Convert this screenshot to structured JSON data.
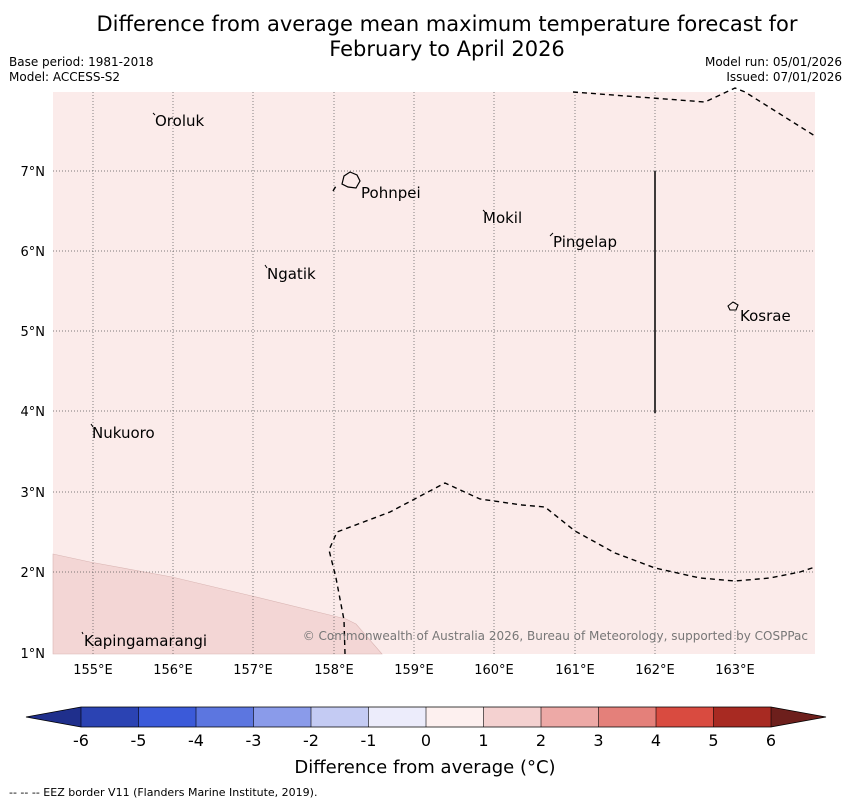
{
  "title": {
    "line1": "Difference from average mean maximum temperature forecast for",
    "line2": "February to April 2026"
  },
  "meta": {
    "base_period": "Base period: 1981-2018",
    "model": "Model: ACCESS-S2",
    "model_run": "Model run: 05/01/2026",
    "issued": "Issued: 07/01/2026"
  },
  "map": {
    "lon_labels": [
      "155°E",
      "156°E",
      "157°E",
      "158°E",
      "159°E",
      "160°E",
      "161°E",
      "162°E",
      "163°E"
    ],
    "lat_labels": [
      "7°N",
      "6°N",
      "5°N",
      "4°N",
      "3°N",
      "2°N",
      "1°N"
    ],
    "places": {
      "oroluk": "Oroluk",
      "pohnpei": "Pohnpei",
      "mokil": "Mokil",
      "pingelap": "Pingelap",
      "ngatik": "Ngatik",
      "kosrae": "Kosrae",
      "nukuoro": "Nukuoro",
      "kapingamarangi": "Kapingamarangi"
    },
    "copyright": "© Commonwealth of Australia 2026, Bureau of Meteorology, supported by COSPPac",
    "colors": {
      "base_fill": "#fbebea",
      "anomaly_fill": "#f3d6d5"
    }
  },
  "colorbar": {
    "ticks": [
      "-6",
      "-5",
      "-4",
      "-3",
      "-2",
      "-1",
      "0",
      "1",
      "2",
      "3",
      "4",
      "5",
      "6"
    ],
    "colors": [
      "#1f2f8c",
      "#2b43b3",
      "#3b5ad9",
      "#5c76e0",
      "#8a9bea",
      "#c4cbf3",
      "#ececfb",
      "#fdf0ef",
      "#f4d1d0",
      "#eda9a6",
      "#e4807a",
      "#d94b40",
      "#a82a22",
      "#6d1f1c"
    ],
    "label": "Difference from average (°C)"
  },
  "footer": "--  --  -- EEZ border V11 (Flanders Marine Institute, 2019)."
}
